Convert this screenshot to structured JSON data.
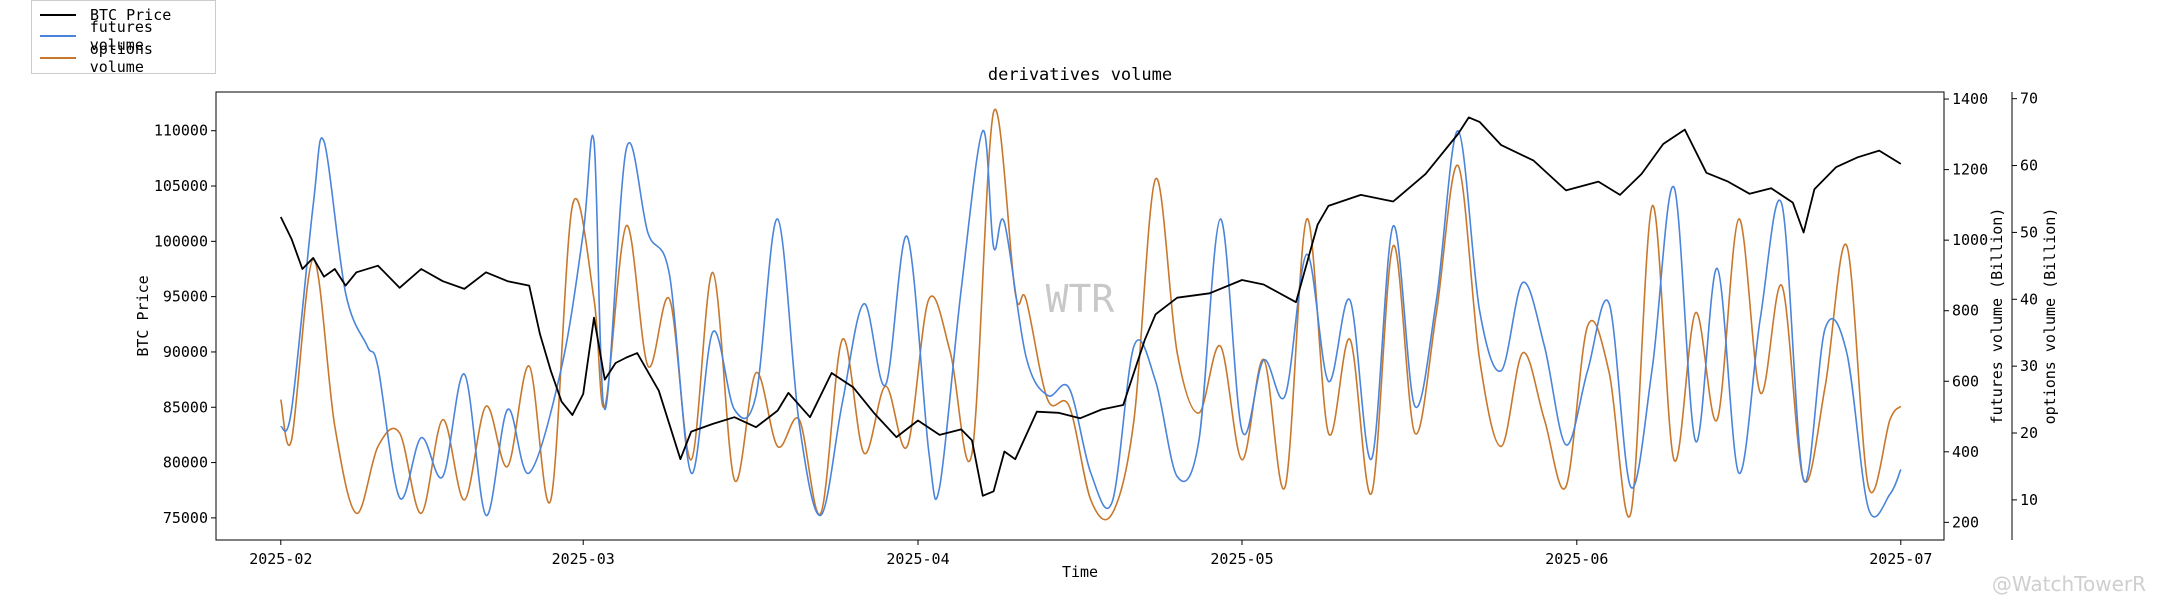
{
  "chart_data": {
    "type": "line",
    "title": "derivatives volume",
    "xlabel": "Time",
    "x_ticks": [
      "2025-02",
      "2025-03",
      "2025-04",
      "2025-05",
      "2025-06",
      "2025-07"
    ],
    "x_range": [
      "2025-01-26",
      "2025-07-05"
    ],
    "axes": {
      "left": {
        "label": "BTC Price",
        "range": [
          73000,
          113500
        ],
        "ticks": [
          75000,
          80000,
          85000,
          90000,
          95000,
          100000,
          105000,
          110000
        ]
      },
      "right1": {
        "label": "futures volume (Billion)",
        "range": [
          150,
          1420
        ],
        "ticks": [
          200,
          400,
          600,
          800,
          1000,
          1200,
          1400
        ]
      },
      "right2": {
        "label": "options volume (Billion)",
        "range": [
          4,
          71
        ],
        "ticks": [
          10,
          20,
          30,
          40,
          50,
          60,
          70
        ]
      }
    },
    "legend_position": "top-left",
    "series": [
      {
        "name": "BTC Price",
        "axis": "left",
        "color": "#000000",
        "x": [
          "2025-02-01",
          "2025-02-02",
          "2025-02-03",
          "2025-02-04",
          "2025-02-05",
          "2025-02-06",
          "2025-02-07",
          "2025-02-08",
          "2025-02-10",
          "2025-02-12",
          "2025-02-14",
          "2025-02-16",
          "2025-02-18",
          "2025-02-20",
          "2025-02-22",
          "2025-02-24",
          "2025-02-25",
          "2025-02-26",
          "2025-02-27",
          "2025-02-28",
          "2025-03-01",
          "2025-03-02",
          "2025-03-03",
          "2025-03-04",
          "2025-03-05",
          "2025-03-06",
          "2025-03-08",
          "2025-03-10",
          "2025-03-11",
          "2025-03-13",
          "2025-03-15",
          "2025-03-17",
          "2025-03-19",
          "2025-03-20",
          "2025-03-22",
          "2025-03-24",
          "2025-03-26",
          "2025-03-28",
          "2025-03-30",
          "2025-04-01",
          "2025-04-03",
          "2025-04-05",
          "2025-04-06",
          "2025-04-07",
          "2025-04-08",
          "2025-04-09",
          "2025-04-10",
          "2025-04-12",
          "2025-04-14",
          "2025-04-16",
          "2025-04-18",
          "2025-04-20",
          "2025-04-22",
          "2025-04-23",
          "2025-04-25",
          "2025-04-28",
          "2025-05-01",
          "2025-05-03",
          "2025-05-06",
          "2025-05-08",
          "2025-05-09",
          "2025-05-12",
          "2025-05-15",
          "2025-05-18",
          "2025-05-21",
          "2025-05-22",
          "2025-05-23",
          "2025-05-25",
          "2025-05-28",
          "2025-05-31",
          "2025-06-03",
          "2025-06-05",
          "2025-06-07",
          "2025-06-09",
          "2025-06-11",
          "2025-06-13",
          "2025-06-15",
          "2025-06-17",
          "2025-06-19",
          "2025-06-21",
          "2025-06-22",
          "2025-06-23",
          "2025-06-25",
          "2025-06-27",
          "2025-06-29",
          "2025-07-01"
        ],
        "y": [
          102200,
          100200,
          97500,
          98500,
          96800,
          97500,
          96000,
          97200,
          97800,
          95800,
          97500,
          96400,
          95700,
          97200,
          96400,
          96000,
          91600,
          88300,
          85500,
          84300,
          86200,
          93100,
          87500,
          89000,
          89500,
          89900,
          86500,
          80300,
          82800,
          83500,
          84100,
          83200,
          84700,
          86300,
          84100,
          88100,
          86800,
          84400,
          82300,
          83800,
          82500,
          83000,
          82000,
          77000,
          77400,
          81000,
          80300,
          84600,
          84500,
          84000,
          84800,
          85200,
          91100,
          93400,
          94900,
          95300,
          96500,
          96100,
          94500,
          101500,
          103200,
          104200,
          103600,
          106100,
          109700,
          111200,
          110800,
          108700,
          107300,
          104600,
          105400,
          104200,
          106100,
          108800,
          110100,
          106200,
          105400,
          104300,
          104800,
          103500,
          100800,
          104700,
          106700,
          107600,
          108200,
          107000
        ]
      },
      {
        "name": "futures volume",
        "axis": "right1",
        "color": "#4a84db",
        "x": [
          "2025-02-01",
          "2025-02-02",
          "2025-02-04",
          "2025-02-05",
          "2025-02-07",
          "2025-02-09",
          "2025-02-10",
          "2025-02-12",
          "2025-02-14",
          "2025-02-16",
          "2025-02-18",
          "2025-02-20",
          "2025-02-22",
          "2025-02-24",
          "2025-02-27",
          "2025-03-01",
          "2025-03-02",
          "2025-03-03",
          "2025-03-05",
          "2025-03-07",
          "2025-03-09",
          "2025-03-11",
          "2025-03-13",
          "2025-03-15",
          "2025-03-17",
          "2025-03-19",
          "2025-03-21",
          "2025-03-23",
          "2025-03-25",
          "2025-03-27",
          "2025-03-29",
          "2025-03-31",
          "2025-04-02",
          "2025-04-03",
          "2025-04-05",
          "2025-04-07",
          "2025-04-08",
          "2025-04-09",
          "2025-04-11",
          "2025-04-13",
          "2025-04-15",
          "2025-04-17",
          "2025-04-19",
          "2025-04-21",
          "2025-04-23",
          "2025-04-25",
          "2025-04-27",
          "2025-04-29",
          "2025-05-01",
          "2025-05-03",
          "2025-05-05",
          "2025-05-07",
          "2025-05-09",
          "2025-05-11",
          "2025-05-13",
          "2025-05-15",
          "2025-05-17",
          "2025-05-19",
          "2025-05-21",
          "2025-05-23",
          "2025-05-25",
          "2025-05-27",
          "2025-05-29",
          "2025-05-31",
          "2025-06-02",
          "2025-06-04",
          "2025-06-06",
          "2025-06-08",
          "2025-06-10",
          "2025-06-12",
          "2025-06-14",
          "2025-06-16",
          "2025-06-18",
          "2025-06-20",
          "2025-06-22",
          "2025-06-24",
          "2025-06-26",
          "2025-06-28",
          "2025-06-30",
          "2025-07-01"
        ],
        "y": [
          470,
          520,
          1100,
          1280,
          850,
          700,
          640,
          270,
          440,
          330,
          620,
          220,
          520,
          340,
          640,
          1020,
          1280,
          520,
          1260,
          1020,
          900,
          340,
          740,
          520,
          560,
          1060,
          480,
          220,
          540,
          820,
          590,
          1010,
          400,
          300,
          860,
          1310,
          980,
          1050,
          670,
          560,
          580,
          340,
          260,
          700,
          600,
          330,
          430,
          1060,
          460,
          660,
          560,
          960,
          600,
          830,
          380,
          1040,
          530,
          830,
          1310,
          800,
          630,
          880,
          700,
          420,
          630,
          820,
          300,
          640,
          1150,
          430,
          920,
          340,
          780,
          1100,
          320,
          750,
          680,
          240,
          280,
          350
        ]
      },
      {
        "name": "options volume",
        "axis": "right2",
        "color": "#c8782c",
        "x": [
          "2025-02-01",
          "2025-02-02",
          "2025-02-04",
          "2025-02-06",
          "2025-02-08",
          "2025-02-10",
          "2025-02-12",
          "2025-02-14",
          "2025-02-16",
          "2025-02-18",
          "2025-02-20",
          "2025-02-22",
          "2025-02-24",
          "2025-02-26",
          "2025-02-28",
          "2025-03-02",
          "2025-03-03",
          "2025-03-05",
          "2025-03-07",
          "2025-03-09",
          "2025-03-11",
          "2025-03-13",
          "2025-03-15",
          "2025-03-17",
          "2025-03-19",
          "2025-03-21",
          "2025-03-23",
          "2025-03-25",
          "2025-03-27",
          "2025-03-29",
          "2025-03-31",
          "2025-04-02",
          "2025-04-04",
          "2025-04-06",
          "2025-04-08",
          "2025-04-10",
          "2025-04-11",
          "2025-04-13",
          "2025-04-15",
          "2025-04-17",
          "2025-04-19",
          "2025-04-21",
          "2025-04-23",
          "2025-04-25",
          "2025-04-27",
          "2025-04-29",
          "2025-05-01",
          "2025-05-03",
          "2025-05-05",
          "2025-05-07",
          "2025-05-09",
          "2025-05-11",
          "2025-05-13",
          "2025-05-15",
          "2025-05-17",
          "2025-05-19",
          "2025-05-21",
          "2025-05-23",
          "2025-05-25",
          "2025-05-27",
          "2025-05-29",
          "2025-05-31",
          "2025-06-02",
          "2025-06-04",
          "2025-06-06",
          "2025-06-08",
          "2025-06-10",
          "2025-06-12",
          "2025-06-14",
          "2025-06-16",
          "2025-06-18",
          "2025-06-20",
          "2025-06-22",
          "2025-06-24",
          "2025-06-26",
          "2025-06-28",
          "2025-06-30",
          "2025-07-01"
        ],
        "y": [
          25,
          19,
          46,
          21,
          8,
          18,
          20,
          8,
          22,
          10,
          24,
          15,
          30,
          10,
          54,
          40,
          24,
          51,
          30,
          40,
          16,
          44,
          13,
          29,
          18,
          22,
          8,
          34,
          17,
          27,
          18,
          40,
          32,
          17,
          68,
          41,
          40,
          25,
          24,
          10,
          8,
          22,
          58,
          32,
          23,
          33,
          16,
          31,
          12,
          52,
          20,
          34,
          11,
          48,
          20,
          38,
          60,
          31,
          18,
          32,
          22,
          12,
          36,
          29,
          8,
          54,
          16,
          38,
          22,
          52,
          26,
          42,
          13,
          27,
          48,
          12,
          22,
          24
        ]
      }
    ]
  },
  "watermark": "WTR",
  "corner_watermark": "@WatchTowerR"
}
